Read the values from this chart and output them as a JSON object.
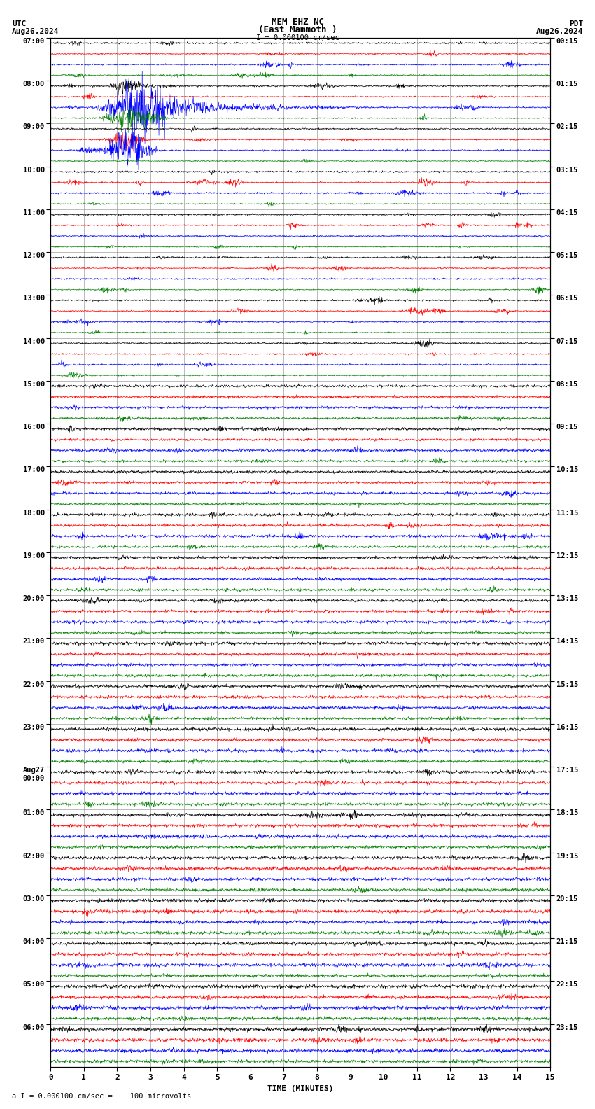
{
  "title_line1": "MEM EHZ NC",
  "title_line2": "(East Mammoth )",
  "scale_label": "I = 0.000100 cm/sec",
  "bottom_label": "a I = 0.000100 cm/sec =    100 microvolts",
  "utc_label": "UTC",
  "utc_date": "Aug26,2024",
  "pdt_label": "PDT",
  "pdt_date": "Aug26,2024",
  "xlabel": "TIME (MINUTES)",
  "left_times": [
    "07:00",
    "08:00",
    "09:00",
    "10:00",
    "11:00",
    "12:00",
    "13:00",
    "14:00",
    "15:00",
    "16:00",
    "17:00",
    "18:00",
    "19:00",
    "20:00",
    "21:00",
    "22:00",
    "23:00",
    "Aug27\n00:00",
    "01:00",
    "02:00",
    "03:00",
    "04:00",
    "05:00",
    "06:00"
  ],
  "right_times": [
    "00:15",
    "01:15",
    "02:15",
    "03:15",
    "04:15",
    "05:15",
    "06:15",
    "07:15",
    "08:15",
    "09:15",
    "10:15",
    "11:15",
    "12:15",
    "13:15",
    "14:15",
    "15:15",
    "16:15",
    "17:15",
    "18:15",
    "19:15",
    "20:15",
    "21:15",
    "22:15",
    "23:15"
  ],
  "num_hours": 24,
  "colors": [
    "black",
    "red",
    "blue",
    "green"
  ],
  "bg_color": "white",
  "grid_color": "#888888"
}
